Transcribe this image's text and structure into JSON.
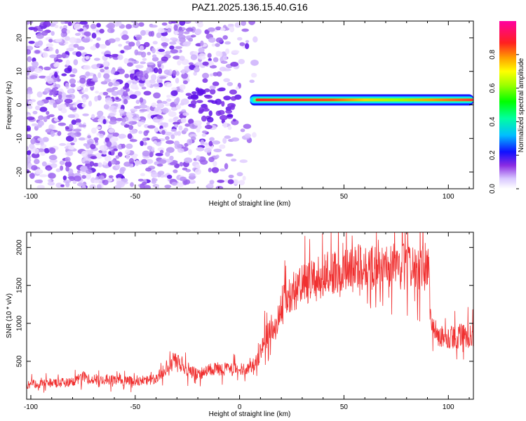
{
  "figure": {
    "title": "PAZ1.2025.136.15.40.G16"
  },
  "chart_data": [
    {
      "type": "heatmap",
      "title": "",
      "xlabel": "Height of straight line (km)",
      "ylabel": "Frequency (Hz)",
      "xlim": [
        -102,
        112
      ],
      "ylim": [
        -25,
        25
      ],
      "xticks": [
        -100,
        -50,
        0,
        50,
        100
      ],
      "yticks": [
        -20,
        -10,
        0,
        10,
        20
      ],
      "colorbar": {
        "label": "Normalized spectral amplitude",
        "range": [
          0,
          1
        ],
        "ticks": [
          "0.0",
          "0.2",
          "0.4",
          "0.6",
          "0.8"
        ],
        "colormap": "hsv-like: white, purple, blue, cyan, green, yellow, orange, red, magenta"
      },
      "ridge": {
        "description": "coherent signal band near 0–2 Hz from about 5 km to 112 km, peak amplitude ~0.9 around 15–35 km",
        "x_range": [
          5,
          112
        ],
        "frequency_hz": 1.5,
        "peak_amplitude": 0.9
      },
      "noise_region": {
        "x_range": [
          -102,
          10
        ],
        "amplitude_range": [
          0.05,
          0.3
        ]
      }
    },
    {
      "type": "line",
      "title": "",
      "xlabel": "Height of straight line (km)",
      "ylabel": "SNR (10 * v/v)",
      "xlim": [
        -102,
        112
      ],
      "ylim": [
        0,
        2200
      ],
      "xticks": [
        -100,
        -50,
        0,
        50,
        100
      ],
      "yticks": [
        500,
        1000,
        1500,
        2000
      ],
      "series": [
        {
          "color": "#f03030",
          "x": [
            -102,
            -90,
            -80,
            -75,
            -70,
            -60,
            -50,
            -40,
            -35,
            -32,
            -28,
            -25,
            -20,
            -15,
            -10,
            -5,
            0,
            5,
            8,
            10,
            12,
            15,
            18,
            20,
            25,
            30,
            35,
            40,
            45,
            50,
            55,
            60,
            65,
            70,
            75,
            80,
            85,
            90,
            91,
            92,
            95,
            100,
            105,
            112
          ],
          "values": [
            200,
            210,
            230,
            300,
            260,
            250,
            240,
            260,
            420,
            520,
            480,
            370,
            330,
            380,
            400,
            400,
            390,
            420,
            480,
            650,
            800,
            900,
            1000,
            1250,
            1400,
            1500,
            1550,
            1620,
            1680,
            1700,
            1720,
            1750,
            1740,
            1760,
            1730,
            1750,
            1740,
            1750,
            1750,
            900,
            850,
            820,
            830,
            840
          ]
        }
      ]
    }
  ]
}
